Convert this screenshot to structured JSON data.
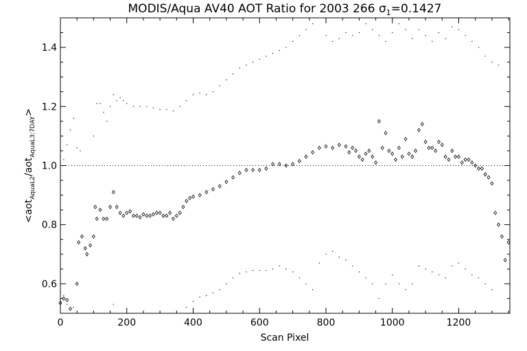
{
  "chart_data": {
    "type": "scatter",
    "title": "MODIS/Aqua AV40 AOT Ratio for 2003 266",
    "title_stat": {
      "symbol": "σ",
      "subscript": "1",
      "value": "=0.1427"
    },
    "xlabel": "Scan Pixel",
    "ylabel": {
      "prefix": "<aot",
      "sub1": "AquaL2",
      "mid": "/aot",
      "sub2": "AquaL3:7DAY",
      "suffix": ">"
    },
    "xlim": [
      0,
      1354
    ],
    "ylim": [
      0.5,
      1.5
    ],
    "x_ticks": [
      0,
      200,
      400,
      600,
      800,
      1000,
      1200
    ],
    "x_tick_labels": [
      "0",
      "200",
      "400",
      "600",
      "800",
      "1000",
      "1200"
    ],
    "y_ticks": [
      0.6,
      0.8,
      1.0,
      1.2,
      1.4
    ],
    "y_tick_labels": [
      "0.6",
      "0.8",
      "1.0",
      "1.2",
      "1.4"
    ],
    "reference_line": {
      "y": 1.0,
      "style": "dotted"
    },
    "grid": false,
    "legend": "none",
    "series": [
      {
        "marker": "diamond",
        "points": [
          [
            0,
            0.535
          ],
          [
            10,
            0.55
          ],
          [
            20,
            0.545
          ],
          [
            30,
            0.515
          ],
          [
            50,
            0.6
          ],
          [
            55,
            0.74
          ],
          [
            65,
            0.76
          ],
          [
            75,
            0.72
          ],
          [
            80,
            0.7
          ],
          [
            90,
            0.73
          ],
          [
            100,
            0.76
          ],
          [
            105,
            0.86
          ],
          [
            110,
            0.82
          ],
          [
            120,
            0.85
          ],
          [
            130,
            0.82
          ],
          [
            140,
            0.82
          ],
          [
            150,
            0.86
          ],
          [
            160,
            0.91
          ],
          [
            170,
            0.86
          ],
          [
            180,
            0.84
          ],
          [
            190,
            0.83
          ],
          [
            200,
            0.84
          ],
          [
            210,
            0.845
          ],
          [
            220,
            0.83
          ],
          [
            230,
            0.83
          ],
          [
            240,
            0.825
          ],
          [
            250,
            0.835
          ],
          [
            260,
            0.83
          ],
          [
            270,
            0.83
          ],
          [
            280,
            0.835
          ],
          [
            290,
            0.84
          ],
          [
            300,
            0.84
          ],
          [
            310,
            0.83
          ],
          [
            320,
            0.83
          ],
          [
            330,
            0.84
          ],
          [
            340,
            0.82
          ],
          [
            350,
            0.83
          ],
          [
            360,
            0.84
          ],
          [
            370,
            0.86
          ],
          [
            380,
            0.88
          ],
          [
            390,
            0.89
          ],
          [
            400,
            0.895
          ],
          [
            420,
            0.9
          ],
          [
            440,
            0.91
          ],
          [
            460,
            0.92
          ],
          [
            480,
            0.93
          ],
          [
            500,
            0.945
          ],
          [
            520,
            0.96
          ],
          [
            540,
            0.975
          ],
          [
            560,
            0.985
          ],
          [
            580,
            0.985
          ],
          [
            600,
            0.985
          ],
          [
            620,
            0.99
          ],
          [
            640,
            1.005
          ],
          [
            660,
            1.005
          ],
          [
            680,
            1.0
          ],
          [
            700,
            1.005
          ],
          [
            720,
            1.015
          ],
          [
            740,
            1.03
          ],
          [
            760,
            1.045
          ],
          [
            780,
            1.06
          ],
          [
            800,
            1.065
          ],
          [
            820,
            1.06
          ],
          [
            840,
            1.07
          ],
          [
            860,
            1.065
          ],
          [
            870,
            1.045
          ],
          [
            880,
            1.06
          ],
          [
            890,
            1.05
          ],
          [
            900,
            1.03
          ],
          [
            910,
            1.02
          ],
          [
            920,
            1.04
          ],
          [
            930,
            1.05
          ],
          [
            940,
            1.03
          ],
          [
            950,
            1.01
          ],
          [
            960,
            1.15
          ],
          [
            970,
            1.06
          ],
          [
            980,
            1.11
          ],
          [
            990,
            1.05
          ],
          [
            1000,
            1.04
          ],
          [
            1010,
            1.02
          ],
          [
            1020,
            1.06
          ],
          [
            1030,
            1.03
          ],
          [
            1040,
            1.09
          ],
          [
            1050,
            1.04
          ],
          [
            1060,
            1.03
          ],
          [
            1070,
            1.05
          ],
          [
            1080,
            1.12
          ],
          [
            1090,
            1.14
          ],
          [
            1100,
            1.08
          ],
          [
            1110,
            1.06
          ],
          [
            1120,
            1.06
          ],
          [
            1130,
            1.05
          ],
          [
            1140,
            1.08
          ],
          [
            1150,
            1.07
          ],
          [
            1160,
            1.03
          ],
          [
            1170,
            1.02
          ],
          [
            1180,
            1.05
          ],
          [
            1190,
            1.03
          ],
          [
            1200,
            1.03
          ],
          [
            1210,
            1.01
          ],
          [
            1220,
            1.02
          ],
          [
            1230,
            1.02
          ],
          [
            1240,
            1.01
          ],
          [
            1250,
            1.0
          ],
          [
            1260,
            0.99
          ],
          [
            1270,
            0.99
          ],
          [
            1280,
            0.97
          ],
          [
            1290,
            0.96
          ],
          [
            1300,
            0.94
          ],
          [
            1310,
            0.84
          ],
          [
            1320,
            0.8
          ],
          [
            1330,
            0.76
          ],
          [
            1340,
            0.68
          ],
          [
            1350,
            0.74
          ]
        ]
      },
      {
        "marker": "dot",
        "name_hint": "upper envelope",
        "points": [
          [
            10,
            1.02
          ],
          [
            20,
            1.07
          ],
          [
            30,
            1.12
          ],
          [
            40,
            1.16
          ],
          [
            50,
            1.06
          ],
          [
            60,
            1.05
          ],
          [
            100,
            1.1
          ],
          [
            110,
            1.21
          ],
          [
            120,
            1.21
          ],
          [
            130,
            1.18
          ],
          [
            140,
            1.15
          ],
          [
            150,
            1.2
          ],
          [
            160,
            1.24
          ],
          [
            170,
            1.22
          ],
          [
            180,
            1.23
          ],
          [
            190,
            1.22
          ],
          [
            200,
            1.21
          ],
          [
            220,
            1.2
          ],
          [
            240,
            1.2
          ],
          [
            260,
            1.2
          ],
          [
            280,
            1.195
          ],
          [
            300,
            1.19
          ],
          [
            320,
            1.19
          ],
          [
            340,
            1.185
          ],
          [
            360,
            1.2
          ],
          [
            380,
            1.22
          ],
          [
            400,
            1.24
          ],
          [
            420,
            1.245
          ],
          [
            440,
            1.24
          ],
          [
            460,
            1.25
          ],
          [
            480,
            1.27
          ],
          [
            500,
            1.29
          ],
          [
            520,
            1.31
          ],
          [
            540,
            1.33
          ],
          [
            560,
            1.34
          ],
          [
            580,
            1.35
          ],
          [
            600,
            1.36
          ],
          [
            620,
            1.37
          ],
          [
            640,
            1.38
          ],
          [
            660,
            1.39
          ],
          [
            680,
            1.4
          ],
          [
            700,
            1.42
          ],
          [
            720,
            1.44
          ],
          [
            740,
            1.46
          ],
          [
            760,
            1.48
          ],
          [
            800,
            1.44
          ],
          [
            820,
            1.42
          ],
          [
            840,
            1.43
          ],
          [
            860,
            1.45
          ],
          [
            880,
            1.44
          ],
          [
            900,
            1.45
          ],
          [
            920,
            1.48
          ],
          [
            940,
            1.46
          ],
          [
            960,
            1.44
          ],
          [
            980,
            1.42
          ],
          [
            1000,
            1.45
          ],
          [
            1020,
            1.48
          ],
          [
            1040,
            1.46
          ],
          [
            1060,
            1.43
          ],
          [
            1080,
            1.46
          ],
          [
            1100,
            1.44
          ],
          [
            1120,
            1.42
          ],
          [
            1140,
            1.45
          ],
          [
            1160,
            1.43
          ],
          [
            1180,
            1.47
          ],
          [
            1200,
            1.46
          ],
          [
            1220,
            1.44
          ],
          [
            1240,
            1.42
          ],
          [
            1260,
            1.4
          ],
          [
            1280,
            1.37
          ],
          [
            1300,
            1.35
          ],
          [
            1320,
            1.34
          ]
        ]
      },
      {
        "marker": "dot",
        "name_hint": "lower envelope",
        "points": [
          [
            10,
            0.56
          ],
          [
            20,
            0.53
          ],
          [
            40,
            0.52
          ],
          [
            160,
            0.53
          ],
          [
            380,
            0.52
          ],
          [
            400,
            0.54
          ],
          [
            420,
            0.555
          ],
          [
            440,
            0.56
          ],
          [
            460,
            0.57
          ],
          [
            480,
            0.58
          ],
          [
            500,
            0.6
          ],
          [
            520,
            0.62
          ],
          [
            540,
            0.635
          ],
          [
            560,
            0.64
          ],
          [
            580,
            0.645
          ],
          [
            600,
            0.645
          ],
          [
            620,
            0.645
          ],
          [
            640,
            0.65
          ],
          [
            660,
            0.66
          ],
          [
            680,
            0.65
          ],
          [
            700,
            0.64
          ],
          [
            720,
            0.62
          ],
          [
            740,
            0.6
          ],
          [
            760,
            0.58
          ],
          [
            780,
            0.67
          ],
          [
            800,
            0.7
          ],
          [
            820,
            0.71
          ],
          [
            840,
            0.69
          ],
          [
            860,
            0.68
          ],
          [
            880,
            0.66
          ],
          [
            900,
            0.64
          ],
          [
            920,
            0.62
          ],
          [
            940,
            0.6
          ],
          [
            960,
            0.55
          ],
          [
            980,
            0.6
          ],
          [
            1000,
            0.63
          ],
          [
            1020,
            0.6
          ],
          [
            1040,
            0.58
          ],
          [
            1060,
            0.6
          ],
          [
            1080,
            0.66
          ],
          [
            1100,
            0.65
          ],
          [
            1120,
            0.64
          ],
          [
            1140,
            0.63
          ],
          [
            1160,
            0.62
          ],
          [
            1180,
            0.66
          ],
          [
            1200,
            0.67
          ],
          [
            1220,
            0.65
          ],
          [
            1240,
            0.63
          ],
          [
            1260,
            0.62
          ],
          [
            1280,
            0.6
          ],
          [
            1300,
            0.58
          ]
        ]
      }
    ]
  }
}
